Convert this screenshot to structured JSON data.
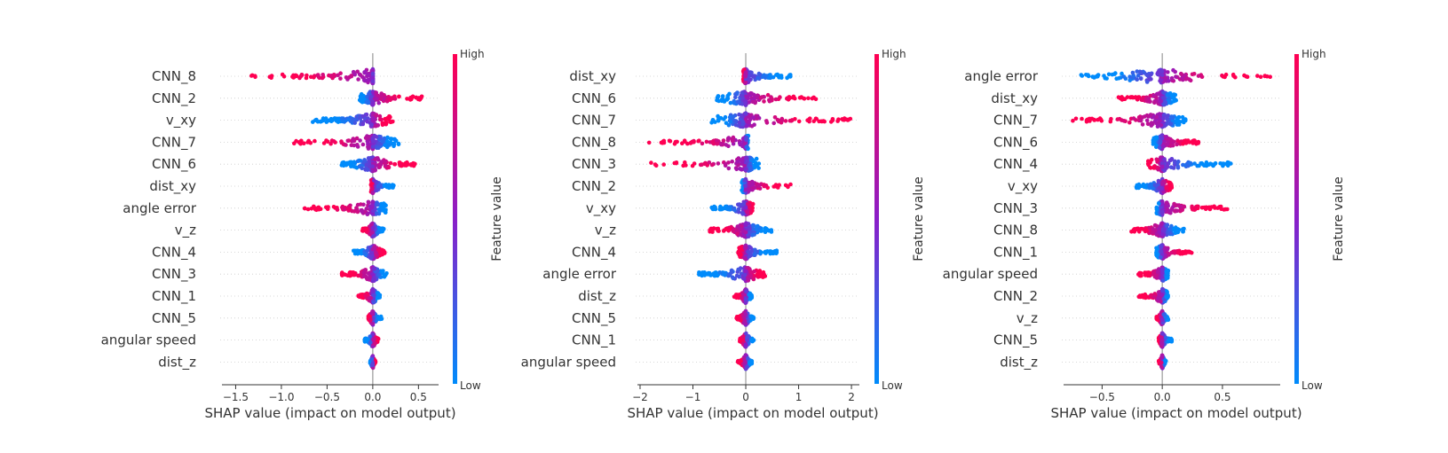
{
  "chart_data": [
    {
      "type": "scatter",
      "subtype": "shap-beeswarm",
      "xlabel": "SHAP value (impact on model output)",
      "xlim": [
        -1.65,
        0.72
      ],
      "xticks": [
        {
          "v": -1.5,
          "label": "−1.5"
        },
        {
          "v": -1.0,
          "label": "−1.0"
        },
        {
          "v": -0.5,
          "label": "−0.5"
        },
        {
          "v": 0.0,
          "label": "0.0"
        },
        {
          "v": 0.5,
          "label": "0.5"
        }
      ],
      "colorbar": {
        "high": "High",
        "low": "Low",
        "label": "Feature value"
      },
      "features": [
        {
          "name": "CNN_8",
          "min": -1.4,
          "max": 0.0,
          "high_side": "neg"
        },
        {
          "name": "CNN_2",
          "min": -0.15,
          "max": 0.55,
          "high_side": "pos"
        },
        {
          "name": "v_xy",
          "min": -0.68,
          "max": 0.22,
          "high_side": "pos"
        },
        {
          "name": "CNN_7",
          "min": -0.88,
          "max": 0.3,
          "high_side": "neg"
        },
        {
          "name": "CNN_6",
          "min": -0.35,
          "max": 0.5,
          "high_side": "pos"
        },
        {
          "name": "dist_xy",
          "min": -0.02,
          "max": 0.25,
          "high_side": "neg"
        },
        {
          "name": "angle error",
          "min": -0.75,
          "max": 0.15,
          "high_side": "neg"
        },
        {
          "name": "v_z",
          "min": -0.12,
          "max": 0.12,
          "high_side": "neg"
        },
        {
          "name": "CNN_4",
          "min": -0.22,
          "max": 0.14,
          "high_side": "pos"
        },
        {
          "name": "CNN_3",
          "min": -0.35,
          "max": 0.16,
          "high_side": "neg"
        },
        {
          "name": "CNN_1",
          "min": -0.16,
          "max": 0.08,
          "high_side": "neg"
        },
        {
          "name": "CNN_5",
          "min": -0.05,
          "max": 0.1,
          "high_side": "neg"
        },
        {
          "name": "angular speed",
          "min": -0.09,
          "max": 0.07,
          "high_side": "pos"
        },
        {
          "name": "dist_z",
          "min": -0.03,
          "max": 0.03,
          "high_side": "pos"
        }
      ]
    },
    {
      "type": "scatter",
      "subtype": "shap-beeswarm",
      "xlabel": "SHAP value (impact on model output)",
      "xlim": [
        -2.05,
        2.15
      ],
      "xticks": [
        {
          "v": -2,
          "label": "−2"
        },
        {
          "v": -1,
          "label": "−1"
        },
        {
          "v": 0,
          "label": "0"
        },
        {
          "v": 1,
          "label": "1"
        },
        {
          "v": 2,
          "label": "2"
        }
      ],
      "colorbar": {
        "high": "High",
        "low": "Low",
        "label": "Feature value"
      },
      "features": [
        {
          "name": "dist_xy",
          "min": -0.05,
          "max": 0.85,
          "high_side": "neg"
        },
        {
          "name": "CNN_6",
          "min": -0.55,
          "max": 1.35,
          "high_side": "pos"
        },
        {
          "name": "CNN_7",
          "min": -0.7,
          "max": 2.0,
          "high_side": "pos"
        },
        {
          "name": "CNN_8",
          "min": -1.85,
          "max": 0.05,
          "high_side": "neg"
        },
        {
          "name": "CNN_3",
          "min": -1.82,
          "max": 0.25,
          "high_side": "neg"
        },
        {
          "name": "CNN_2",
          "min": -0.08,
          "max": 0.85,
          "high_side": "pos"
        },
        {
          "name": "v_xy",
          "min": -0.65,
          "max": 0.15,
          "high_side": "pos"
        },
        {
          "name": "v_z",
          "min": -0.7,
          "max": 0.5,
          "high_side": "neg"
        },
        {
          "name": "CNN_4",
          "min": -0.15,
          "max": 0.6,
          "high_side": "neg"
        },
        {
          "name": "angle error",
          "min": -0.9,
          "max": 0.4,
          "high_side": "pos"
        },
        {
          "name": "dist_z",
          "min": -0.22,
          "max": 0.12,
          "high_side": "neg"
        },
        {
          "name": "CNN_5",
          "min": -0.18,
          "max": 0.15,
          "high_side": "neg"
        },
        {
          "name": "CNN_1",
          "min": -0.12,
          "max": 0.15,
          "high_side": "neg"
        },
        {
          "name": "angular speed",
          "min": -0.15,
          "max": 0.12,
          "high_side": "neg"
        }
      ]
    },
    {
      "type": "scatter",
      "subtype": "shap-beeswarm",
      "xlabel": "SHAP value (impact on model output)",
      "xlim": [
        -0.82,
        0.98
      ],
      "xticks": [
        {
          "v": -0.5,
          "label": "−0.5"
        },
        {
          "v": 0.0,
          "label": "0.0"
        },
        {
          "v": 0.5,
          "label": "0.5"
        }
      ],
      "colorbar": {
        "high": "High",
        "low": "Low",
        "label": "Feature value"
      },
      "features": [
        {
          "name": "angle error",
          "min": -0.68,
          "max": 0.9,
          "high_side": "pos"
        },
        {
          "name": "dist_xy",
          "min": -0.38,
          "max": 0.12,
          "high_side": "neg"
        },
        {
          "name": "CNN_7",
          "min": -0.75,
          "max": 0.2,
          "high_side": "neg"
        },
        {
          "name": "CNN_6",
          "min": -0.08,
          "max": 0.33,
          "high_side": "pos"
        },
        {
          "name": "CNN_4",
          "min": -0.12,
          "max": 0.57,
          "high_side": "neg"
        },
        {
          "name": "v_xy",
          "min": -0.22,
          "max": 0.08,
          "high_side": "pos"
        },
        {
          "name": "CNN_3",
          "min": -0.05,
          "max": 0.55,
          "high_side": "pos"
        },
        {
          "name": "CNN_8",
          "min": -0.27,
          "max": 0.18,
          "high_side": "neg"
        },
        {
          "name": "CNN_1",
          "min": -0.05,
          "max": 0.25,
          "high_side": "pos"
        },
        {
          "name": "angular speed",
          "min": -0.2,
          "max": 0.05,
          "high_side": "neg"
        },
        {
          "name": "CNN_2",
          "min": -0.2,
          "max": 0.05,
          "high_side": "neg"
        },
        {
          "name": "v_z",
          "min": -0.05,
          "max": 0.05,
          "high_side": "neg"
        },
        {
          "name": "CNN_5",
          "min": -0.03,
          "max": 0.08,
          "high_side": "neg"
        },
        {
          "name": "dist_z",
          "min": -0.03,
          "max": 0.03,
          "high_side": "neg"
        }
      ]
    }
  ],
  "colors": {
    "high": "#ff0052",
    "mid": "#8a1ec8",
    "low": "#008bfb",
    "axis": "#333333",
    "zero_line": "#999999",
    "row_line": "#cccccc"
  }
}
